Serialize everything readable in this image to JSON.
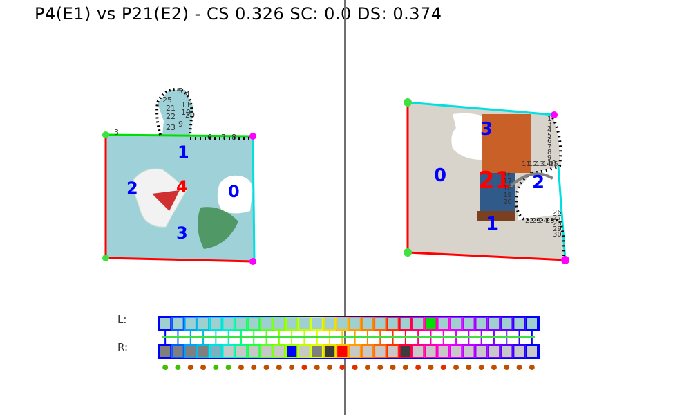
{
  "title": "P4(E1) vs P21(E2) - CS 0.326 SC: 0.0 DS: 0.374",
  "row_labels": {
    "left": "L:",
    "right": "R:"
  },
  "left_piece": {
    "edge_labels": [
      "0",
      "1",
      "2",
      "3",
      "4"
    ],
    "edge_label_colors": [
      "#0000ff",
      "#0000ff",
      "#0000ff",
      "#0000ff",
      "#ff0000"
    ],
    "tab_numbers": [
      "5",
      "4",
      "11",
      "10",
      "9",
      "23",
      "22",
      "21",
      "25",
      "20",
      "6",
      "7",
      "8",
      "3"
    ]
  },
  "right_piece": {
    "edge_labels": [
      "0",
      "1",
      "2",
      "3",
      "21"
    ],
    "edge_label_colors": [
      "#0000ff",
      "#0000ff",
      "#0000ff",
      "#0000ff",
      "#ff0000"
    ],
    "tab_numbers": [
      "1",
      "3",
      "4",
      "5",
      "6",
      "7",
      "8",
      "9",
      "10",
      "11",
      "12",
      "13",
      "14",
      "15",
      "16",
      "17",
      "18",
      "19",
      "20",
      "22",
      "23",
      "24",
      "25",
      "26",
      "27",
      "28",
      "29",
      "30"
    ]
  },
  "strip_L": {
    "fills": [
      "#9fcfcf",
      "#9fcfcf",
      "#9fcfcf",
      "#9fcfcf",
      "#9fcfcf",
      "#9fcfcf",
      "#9fcfcf",
      "#9fcfcf",
      "#9fcfcf",
      "#9fcfcf",
      "#9fcfcf",
      "#9fcfcf",
      "#9fcfcf",
      "#9fcfcf",
      "#9fcfcf",
      "#9fcfcf",
      "#9fcfcf",
      "#9fcfcf",
      "#9fcfcf",
      "#9fcfcf",
      "#9fcfcf",
      "#00e000",
      "#9fcfcf",
      "#9fcfcf",
      "#9fcfcf",
      "#9fcfcf",
      "#9fcfcf",
      "#9fcfcf",
      "#9fcfcf",
      "#9fcfcf"
    ],
    "borders": [
      "#0000ff",
      "#0060ff",
      "#00a0ff",
      "#00c0e0",
      "#00e0e0",
      "#00f0d0",
      "#00ff80",
      "#20ff40",
      "#60ff20",
      "#80ff00",
      "#a0ff00",
      "#c0ff00",
      "#e0ff00",
      "#f0e000",
      "#ffc000",
      "#ffa000",
      "#ff8000",
      "#ff6000",
      "#ff3000",
      "#ff0040",
      "#ff0080",
      "#ff00b0",
      "#ff00e0",
      "#e000ff",
      "#c000ff",
      "#a000ff",
      "#8000ff",
      "#6000ff",
      "#3000ff",
      "#0000ff"
    ]
  },
  "strip_R": {
    "fills": [
      "#7f7f7f",
      "#7f7f7f",
      "#7f7f7f",
      "#7f7f7f",
      "#7fb0c0",
      "#c8c8c8",
      "#c8c8c8",
      "#c8c8c8",
      "#c8c8c8",
      "#c8c8c8",
      "#0000ff",
      "#c8c8c8",
      "#808080",
      "#3c3c3c",
      "#ff0000",
      "#c8c8c8",
      "#c8c8c8",
      "#c8c8c8",
      "#c8c8c8",
      "#3c3c3c",
      "#c8c8c8",
      "#c8c8c8",
      "#c8c8c8",
      "#c8c8c8",
      "#c8c8c8",
      "#c8c8c8",
      "#c8c8c8",
      "#c8c8c8",
      "#c8c8c8",
      "#c8c8c8"
    ],
    "borders": [
      "#0000ff",
      "#0060ff",
      "#00a0ff",
      "#00c0e0",
      "#00e0e0",
      "#00f0d0",
      "#00ff80",
      "#20ff40",
      "#60ff20",
      "#80ff00",
      "#a0ff00",
      "#c0ff00",
      "#e0ff00",
      "#f0e000",
      "#ffc000",
      "#ffa000",
      "#ff8000",
      "#ff6000",
      "#ff3000",
      "#ff0040",
      "#ff0080",
      "#ff00b0",
      "#ff00e0",
      "#e000ff",
      "#c000ff",
      "#a000ff",
      "#8000ff",
      "#6000ff",
      "#3000ff",
      "#0000ff"
    ]
  },
  "match_dots": [
    "#40c000",
    "#40c000",
    "#c05000",
    "#c05000",
    "#40c000",
    "#40c000",
    "#c05000",
    "#c05000",
    "#c05000",
    "#c05000",
    "#c05000",
    "#e03000",
    "#c05000",
    "#c05000",
    "#e03000",
    "#e03000",
    "#c05000",
    "#c05000",
    "#c05000",
    "#c05000",
    "#e03000",
    "#c05000",
    "#e03000",
    "#c05000",
    "#c05000",
    "#c05000",
    "#c05000",
    "#c05000",
    "#c05000",
    "#c05000"
  ]
}
